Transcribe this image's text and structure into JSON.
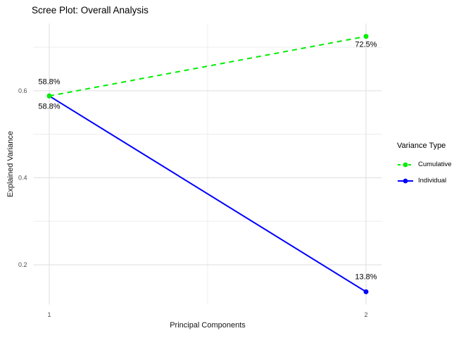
{
  "page": {
    "background": "#ffffff"
  },
  "chart_data": {
    "type": "line",
    "title": "Scree Plot: Overall Analysis",
    "xlabel": "Principal Components",
    "ylabel": "Explained Variance",
    "x": [
      1,
      2
    ],
    "xlim": [
      0.95,
      2.05
    ],
    "ylim": [
      0.1086,
      0.7544
    ],
    "x_ticks": [
      1,
      2
    ],
    "x_tick_labels": [
      "1",
      "2"
    ],
    "x_minor_ticks": [
      1.5
    ],
    "y_ticks": [
      0.2,
      0.4,
      0.6
    ],
    "y_tick_labels": [
      "0.2",
      "0.4",
      "0.6"
    ],
    "y_minor_ticks": [
      0.3,
      0.5,
      0.7
    ],
    "grid": true,
    "legend": {
      "title": "Variance Type",
      "position": "right"
    },
    "series": [
      {
        "name": "Cumulative",
        "values": [
          0.588,
          0.725
        ],
        "point_labels": [
          "58.8%",
          "72.5%"
        ],
        "label_offsets": [
          -20,
          12
        ],
        "color": "#00EE00",
        "linetype": "dashed"
      },
      {
        "name": "Individual",
        "values": [
          0.588,
          0.138
        ],
        "point_labels": [
          "58.8%",
          "13.8%"
        ],
        "label_offsets": [
          15,
          -21
        ],
        "color": "#0000FF",
        "linetype": "solid"
      }
    ],
    "colors": {
      "grid_major": "#E4E4E4",
      "grid_minor": "#EDEDED",
      "tick_label": "#4D4D4D",
      "data_label": "#000000"
    }
  }
}
